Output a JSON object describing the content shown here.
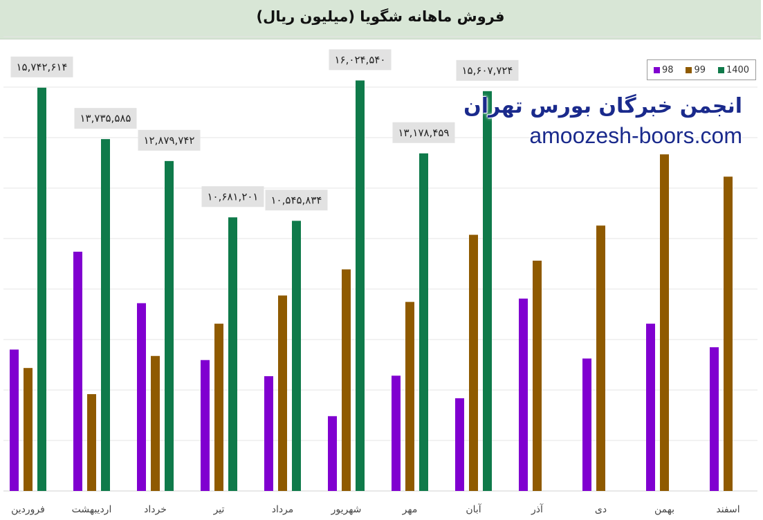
{
  "page": {
    "title": "فروش ماهانه شگویا (میلیون ریال)",
    "watermark_line1": "انجمن خبرگان بورس تهران",
    "watermark_line2": "amoozesh-boors.com"
  },
  "colors": {
    "s98": "#8000d0",
    "s99": "#8f5a00",
    "s1400": "#0f7a4a",
    "grid": "#e4e4e4",
    "label_bg": "#e2e2e2"
  },
  "chart_data": {
    "type": "bar",
    "title": "فروش ماهانه شگویا (میلیون ریال)",
    "categories": [
      "فروردین",
      "اردیبهشت",
      "خرداد",
      "تیر",
      "مرداد",
      "شهریور",
      "مهر",
      "آبان",
      "آذر",
      "دی",
      "بهمن",
      "اسفند"
    ],
    "series": [
      {
        "name": "98",
        "color": "#8000d0",
        "values": [
          5520,
          9340,
          7330,
          5110,
          4480,
          2920,
          4500,
          3620,
          7510,
          5170,
          6530,
          5610
        ]
      },
      {
        "name": "99",
        "color": "#8f5a00",
        "values": [
          4800,
          3780,
          5270,
          6530,
          7630,
          8650,
          7380,
          10000,
          8990,
          10360,
          13140,
          12270
        ]
      },
      {
        "name": "1400",
        "color": "#0f7a4a",
        "values": [
          15742614,
          13735585,
          12879742,
          10681201,
          10545834,
          16024540,
          13178459,
          15607724,
          null,
          null,
          null,
          null
        ],
        "data_labels": [
          "۱۵,۷۴۲,۶۱۴",
          "۱۳,۷۳۵,۵۸۵",
          "۱۲,۸۷۹,۷۴۲",
          "۱۰,۶۸۱,۲۰۱",
          "۱۰,۵۴۵,۸۳۴",
          "۱۶,۰۲۴,۵۴۰",
          "۱۳,۱۷۸,۴۵۹",
          "۱۵,۶۰۷,۷۲۴",
          null,
          null,
          null,
          null
        ]
      }
    ],
    "ylim": [
      0,
      17600
    ],
    "grid": true,
    "legend": [
      "98",
      "99",
      "1400"
    ],
    "legend_position": "top-right"
  }
}
